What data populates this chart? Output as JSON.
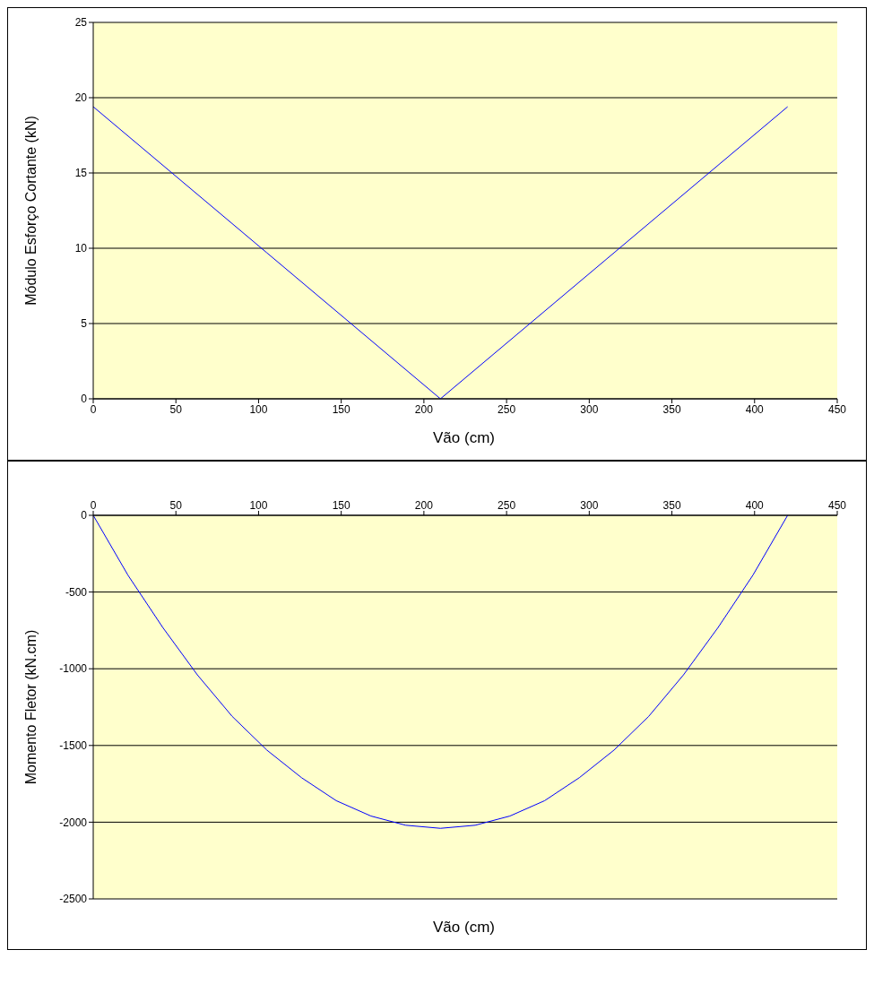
{
  "chart_data": [
    {
      "type": "line",
      "xlabel": "Vão (cm)",
      "ylabel": "Módulo Esforço Cortante (kN)",
      "x": [
        0,
        105,
        210,
        315,
        420
      ],
      "series": [
        {
          "color": "#0000ff",
          "values": [
            19.4,
            9.7,
            0,
            9.7,
            19.4
          ]
        }
      ],
      "xlim": [
        0,
        450
      ],
      "xticks": [
        0,
        50,
        100,
        150,
        200,
        250,
        300,
        350,
        400,
        450
      ],
      "ylim": [
        0,
        25
      ],
      "yticks": [
        0,
        5,
        10,
        15,
        20,
        25
      ],
      "grid": "y",
      "marker": "none",
      "legend": false
    },
    {
      "type": "line",
      "xlabel": "Vão (cm)",
      "ylabel": "Momento Fletor (kN.cm)",
      "x": [
        0,
        21,
        42,
        63,
        84,
        105,
        126,
        147,
        168,
        189,
        210,
        231,
        252,
        273,
        294,
        315,
        336,
        357,
        378,
        399,
        420
      ],
      "series": [
        {
          "color": "#0000ff",
          "values": [
            0,
            -390,
            -730,
            -1040,
            -1310,
            -1530,
            -1710,
            -1860,
            -1960,
            -2020,
            -2040,
            -2020,
            -1960,
            -1860,
            -1710,
            -1530,
            -1310,
            -1040,
            -730,
            -390,
            0
          ]
        }
      ],
      "xlim": [
        0,
        450
      ],
      "xticks": [
        0,
        50,
        100,
        150,
        200,
        250,
        300,
        350,
        400,
        450
      ],
      "ylim": [
        -2500,
        0
      ],
      "yticks": [
        -2500,
        -2000,
        -1500,
        -1000,
        -500,
        0
      ],
      "grid": "y",
      "marker": "none",
      "legend": false
    }
  ]
}
